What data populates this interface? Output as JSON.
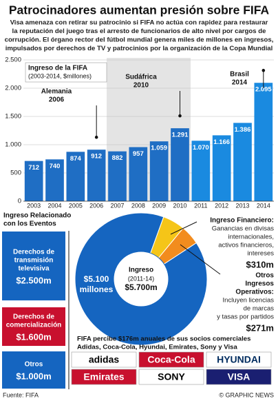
{
  "header": {
    "title": "Patrocinadores aumentan presión sobre FIFA",
    "subtitle": [
      "Visa amenaza con retirar su patrocinio si FIFA no actúa con rapidez para restaurar",
      "la reputación del juego tras el arresto de funcionarios de alto nivel por cargos de",
      "corrupción. El órgano rector del fútbol mundial genera miles de millones en ingresos,",
      "impulsados por derechos de TV y patrocinios por la organización de la Copa Mundial"
    ]
  },
  "chart_data": [
    {
      "type": "bar",
      "title": [
        "Ingreso de la FIFA",
        "(2003-2014, $millones)"
      ],
      "categories": [
        "2003",
        "2004",
        "2005",
        "2006",
        "2007",
        "2008",
        "2009",
        "2010",
        "2011",
        "2012",
        "2013",
        "2014"
      ],
      "values": [
        712,
        740,
        874,
        912,
        882,
        957,
        1059,
        1291,
        1070,
        1166,
        1386,
        2095
      ],
      "value_labels": [
        "712",
        "740",
        "874",
        "912",
        "882",
        "957",
        "1.059",
        "1.291",
        "1.070",
        "1.166",
        "1.386",
        "2.095"
      ],
      "color": "#1f6ec4",
      "ylim": [
        0,
        2500
      ],
      "yticks": [
        0,
        500,
        {
          "value": 1000,
          "label": "1.000"
        },
        {
          "value": 1500,
          "label": "1.500"
        },
        {
          "value": 2000,
          "label": "2.000"
        },
        {
          "value": 2500,
          "label": "2.500"
        }
      ],
      "grid": true,
      "annotations": [
        {
          "lines": [
            "Alemania",
            "2006"
          ],
          "category": 3
        },
        {
          "lines": [
            "Sudáfrica",
            "2010"
          ],
          "category": 7
        },
        {
          "lines": [
            "Brasil",
            "2014"
          ],
          "category": 11
        }
      ]
    },
    {
      "type": "pie",
      "donut": true,
      "title": [
        "Ingreso",
        "(2011-14)",
        "$5.700m"
      ],
      "categories": [
        "Ingreso Relacionado con los Eventos",
        "Ingreso Financiero",
        "Otros Ingresos Operativos"
      ],
      "values": [
        5100,
        310,
        271
      ],
      "value_labels": [
        "$5.100",
        "$310m",
        "$271m"
      ],
      "colors": [
        "#1565c0",
        "#f5c518",
        "#f28c1e"
      ],
      "inner_note": "millones"
    }
  ],
  "events_breakdown": {
    "heading": [
      "Ingreso Relacionado",
      "con los Eventos"
    ],
    "items": [
      {
        "lines": [
          "Derechos de",
          "transmisión",
          "televisiva"
        ],
        "amount": "$2.500m",
        "color": "#1565c0"
      },
      {
        "lines": [
          "Derechos de",
          "comercialización"
        ],
        "amount": "$1.600m",
        "color": "#c8102e"
      },
      {
        "lines": [
          "Otros"
        ],
        "amount": "$1.000m",
        "color": "#1565c0"
      }
    ]
  },
  "side_notes": [
    {
      "heading": [
        "Ingreso Financiero:"
      ],
      "lines": [
        "Ganancias en divisas",
        "internacionales,",
        "activos financieros,",
        "intereses"
      ]
    },
    {
      "heading": [
        "Otros",
        "Ingresos",
        "Operativos:"
      ],
      "lines": [
        "Incluyen licencias",
        "de marcas",
        "y tasas por partidos"
      ]
    }
  ],
  "sponsors": {
    "text": [
      "FIFA percibe $176m anuales de sus socios comerciales",
      "Adidas, Coca-Cola, Hyundai, Emirates, Sony y Visa"
    ],
    "logos": [
      "adidas",
      "Coca-Cola",
      "HYUNDAI",
      "Emirates",
      "SONY",
      "VISA"
    ]
  },
  "footer": {
    "source": "Fuente: FIFA",
    "credit": "© GRAPHIC NEWS"
  }
}
